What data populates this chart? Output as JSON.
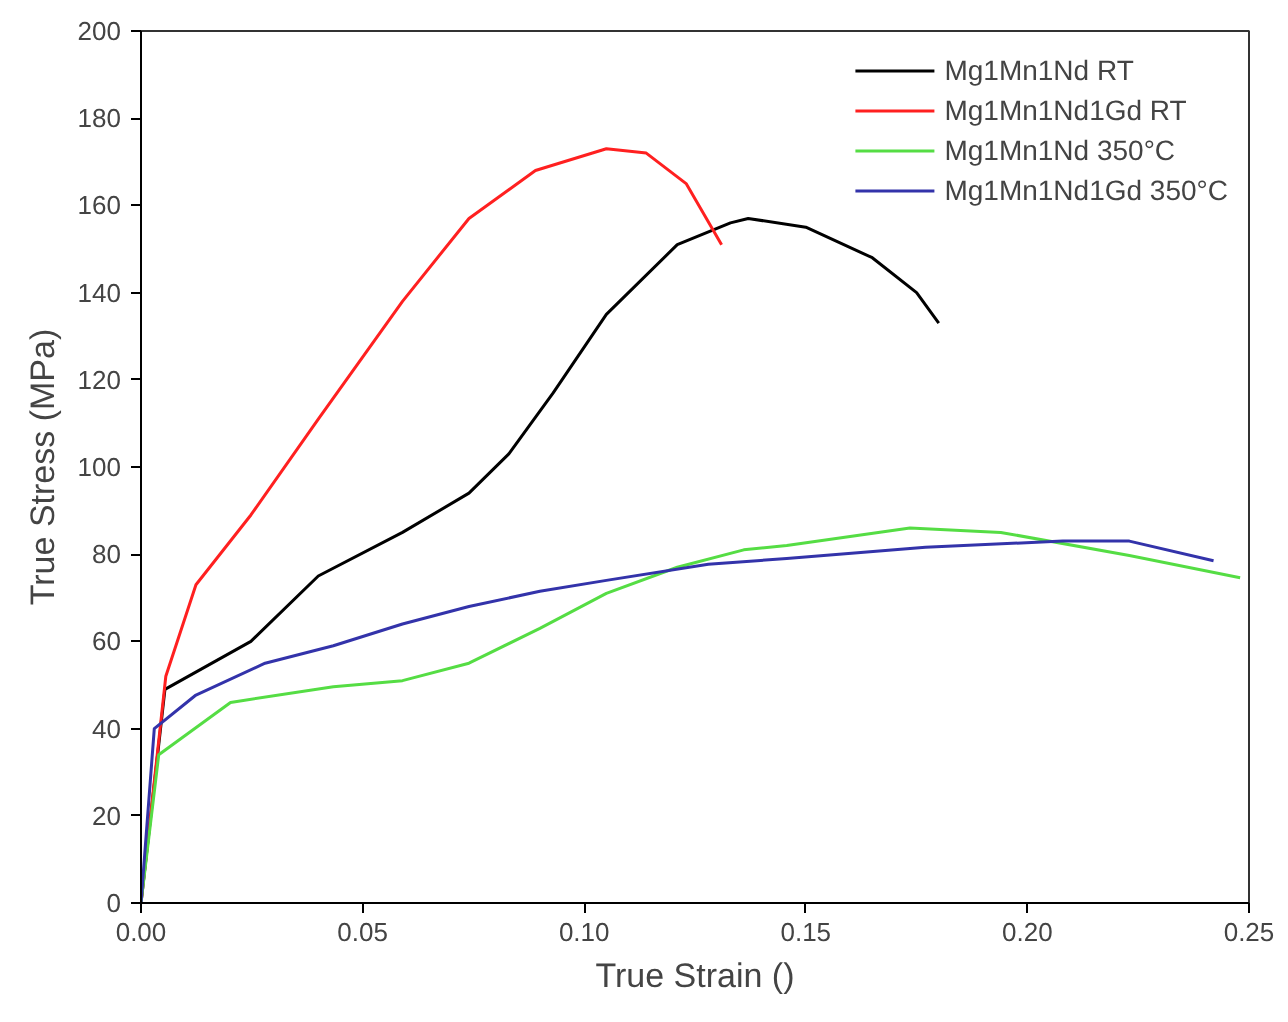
{
  "chart_data": {
    "type": "line",
    "xlabel": "True Strain ()",
    "ylabel": "True Stress (MPa)",
    "xlim": [
      0,
      0.25
    ],
    "ylim": [
      0,
      200
    ],
    "xticks": [
      {
        "value": 0,
        "label": "0.00"
      },
      {
        "value": 0.05,
        "label": "0.05"
      },
      {
        "value": 0.1,
        "label": "0.10"
      },
      {
        "value": 0.15,
        "label": "0.15"
      },
      {
        "value": 0.2,
        "label": "0.20"
      },
      {
        "value": 0.25,
        "label": "0.25"
      }
    ],
    "yticks": [
      0,
      20,
      40,
      60,
      80,
      100,
      120,
      140,
      160,
      180,
      200
    ],
    "grid": false,
    "legend": "top right",
    "line_style": "solid",
    "series": [
      {
        "name": "Mg1Mn1Nd RT",
        "color": "#000000",
        "x": [
          0,
          0.0054,
          0.0248,
          0.04,
          0.059,
          0.074,
          0.083,
          0.093,
          0.105,
          0.121,
          0.133,
          0.137,
          0.15,
          0.165,
          0.175,
          0.18
        ],
        "values": [
          0,
          49,
          60,
          75,
          85,
          94,
          103,
          117,
          135,
          151,
          156,
          157,
          155,
          148,
          140,
          133
        ]
      },
      {
        "name": "Mg1Mn1Nd1Gd RT",
        "color": "#ff2020",
        "x": [
          0,
          0.0056,
          0.0124,
          0.0248,
          0.04,
          0.059,
          0.074,
          0.089,
          0.105,
          0.114,
          0.123,
          0.131
        ],
        "values": [
          0,
          52,
          73,
          89,
          111,
          138,
          157,
          168,
          173,
          172,
          165,
          151
        ]
      },
      {
        "name": "Mg1Mn1Nd 350°C",
        "color": "#55dd44",
        "x": [
          0,
          0.004,
          0.0202,
          0.0434,
          0.059,
          0.074,
          0.09,
          0.105,
          0.121,
          0.136,
          0.1457,
          0.1735,
          0.194,
          0.223,
          0.248
        ],
        "values": [
          0,
          34,
          46,
          49.6,
          51,
          55,
          63,
          71,
          77,
          81,
          82,
          86,
          85,
          79.7,
          74.6
        ]
      },
      {
        "name": "Mg1Mn1Nd1Gd 350°C",
        "color": "#3333aa",
        "x": [
          0,
          0.003,
          0.0124,
          0.028,
          0.0434,
          0.059,
          0.074,
          0.09,
          0.105,
          0.128,
          0.1457,
          0.177,
          0.208,
          0.223,
          0.242
        ],
        "values": [
          0,
          40,
          47.7,
          55,
          59,
          64,
          68,
          71.5,
          74,
          77.7,
          79,
          81.6,
          83,
          83,
          78.5
        ]
      }
    ]
  }
}
